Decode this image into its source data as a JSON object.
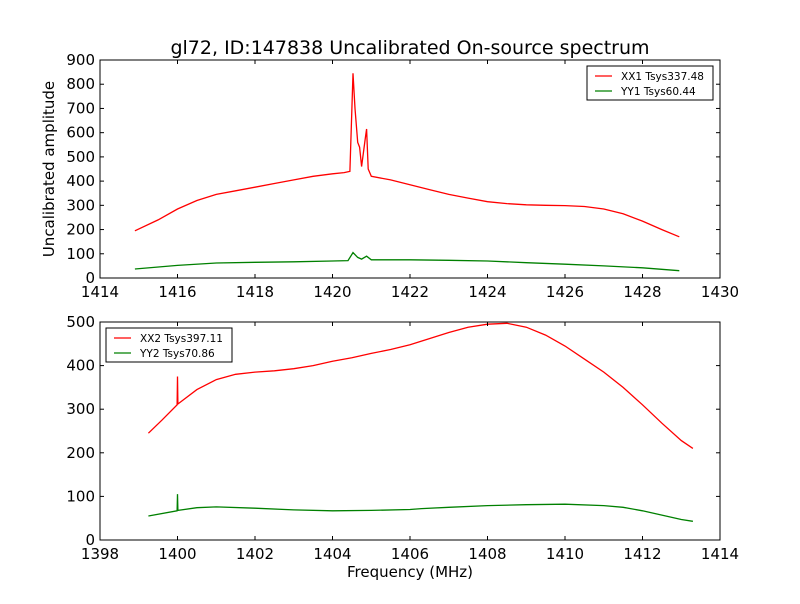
{
  "chart_data": [
    {
      "type": "line",
      "title": "gl72, ID:147838 Uncalibrated On-source spectrum",
      "xlabel": "",
      "ylabel": "Uncalibrated amplitude",
      "xlim": [
        1414,
        1430
      ],
      "ylim": [
        0,
        900
      ],
      "xticks": [
        1414,
        1416,
        1418,
        1420,
        1422,
        1424,
        1426,
        1428,
        1430
      ],
      "yticks": [
        0,
        100,
        200,
        300,
        400,
        500,
        600,
        700,
        800,
        900
      ],
      "legend_position": "top-right",
      "series": [
        {
          "name": "XX1 Tsys337.48",
          "color": "#ff0000",
          "x": [
            1414.9,
            1415.5,
            1416,
            1416.5,
            1417,
            1417.5,
            1418,
            1418.5,
            1419,
            1419.5,
            1420,
            1420.3,
            1420.45,
            1420.5,
            1420.53,
            1420.58,
            1420.65,
            1420.7,
            1420.75,
            1420.8,
            1420.85,
            1420.88,
            1420.92,
            1421,
            1421.5,
            1422,
            1422.5,
            1423,
            1423.5,
            1424,
            1424.5,
            1425,
            1425.5,
            1426,
            1426.5,
            1427,
            1427.5,
            1428,
            1428.5,
            1428.95
          ],
          "y": [
            195,
            240,
            285,
            320,
            345,
            360,
            375,
            390,
            405,
            420,
            430,
            435,
            440,
            700,
            845,
            700,
            560,
            540,
            460,
            520,
            580,
            615,
            450,
            420,
            405,
            385,
            365,
            345,
            330,
            315,
            307,
            302,
            300,
            299,
            295,
            285,
            265,
            235,
            200,
            170
          ]
        },
        {
          "name": "YY1 Tsys60.44",
          "color": "#008000",
          "x": [
            1414.9,
            1416,
            1417,
            1418,
            1419,
            1420,
            1420.4,
            1420.53,
            1420.65,
            1420.75,
            1420.88,
            1421,
            1422,
            1423,
            1424,
            1425,
            1426,
            1427,
            1428,
            1428.95
          ],
          "y": [
            37,
            52,
            62,
            65,
            67,
            70,
            72,
            105,
            85,
            78,
            90,
            75,
            75,
            73,
            70,
            63,
            57,
            50,
            42,
            30
          ]
        }
      ]
    },
    {
      "type": "line",
      "title": "",
      "xlabel": "Frequency (MHz)",
      "ylabel": "",
      "xlim": [
        1398,
        1414
      ],
      "ylim": [
        0,
        500
      ],
      "xticks": [
        1398,
        1400,
        1402,
        1404,
        1406,
        1408,
        1410,
        1412,
        1414
      ],
      "yticks": [
        0,
        100,
        200,
        300,
        400,
        500
      ],
      "legend_position": "top-left",
      "series": [
        {
          "name": "XX2 Tsys397.11",
          "color": "#ff0000",
          "x": [
            1399.25,
            1399.6,
            1399.99,
            1400,
            1400.01,
            1400.5,
            1401,
            1401.5,
            1402,
            1402.5,
            1403,
            1403.5,
            1404,
            1404.5,
            1405,
            1405.5,
            1406,
            1406.5,
            1407,
            1407.5,
            1408,
            1408.5,
            1409,
            1409.5,
            1410,
            1410.5,
            1411,
            1411.5,
            1412,
            1412.5,
            1413,
            1413.3
          ],
          "y": [
            245,
            275,
            310,
            375,
            312,
            345,
            368,
            380,
            385,
            388,
            393,
            400,
            410,
            418,
            428,
            437,
            448,
            462,
            476,
            488,
            495,
            497,
            488,
            470,
            445,
            415,
            385,
            350,
            310,
            268,
            228,
            210
          ]
        },
        {
          "name": "YY2 Tsys70.86",
          "color": "#008000",
          "x": [
            1399.25,
            1399.99,
            1400,
            1400.01,
            1400.5,
            1401,
            1402,
            1403,
            1404,
            1405,
            1406,
            1406.3,
            1407,
            1408,
            1409,
            1410,
            1411,
            1411.5,
            1412,
            1412.5,
            1413,
            1413.3
          ],
          "y": [
            55,
            67,
            105,
            68,
            74,
            76,
            73,
            69,
            67,
            68,
            70,
            72,
            75,
            79,
            81,
            82,
            79,
            75,
            67,
            57,
            47,
            43
          ]
        }
      ]
    }
  ]
}
